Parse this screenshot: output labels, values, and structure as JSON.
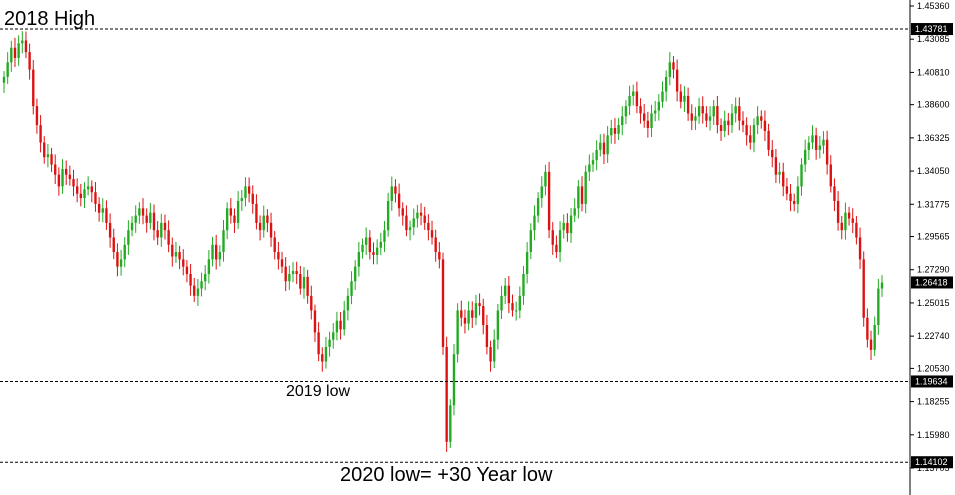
{
  "chart_data": {
    "type": "candlestick",
    "ylim": [
      1.13705,
      1.4536
    ],
    "y_ticks": [
      "1.45360",
      "1.43085",
      "1.40810",
      "1.38600",
      "1.36325",
      "1.34050",
      "1.31775",
      "1.29565",
      "1.27290",
      "1.25015",
      "1.22740",
      "1.20530",
      "1.18255",
      "1.15980",
      "1.13705"
    ],
    "price_markers": [
      {
        "label": "1.43781",
        "value": 1.43781,
        "style": "dashed"
      },
      {
        "label": "1.26418",
        "value": 1.26418,
        "style": "current"
      },
      {
        "label": "1.19634",
        "value": 1.19634,
        "style": "dashed"
      },
      {
        "label": "1.14102",
        "value": 1.14102,
        "style": "dashed"
      }
    ],
    "annotations": {
      "high_2018": "2018 High",
      "low_2019": "2019 low",
      "low_2020": "2020 low= +30 Year low"
    },
    "colors": {
      "up": "#22aa22",
      "down": "#dd1111",
      "background": "#ffffff",
      "axis_text": "#000000"
    },
    "series_close": [
      1.405,
      1.415,
      1.425,
      1.418,
      1.428,
      1.43,
      1.422,
      1.41,
      1.385,
      1.372,
      1.36,
      1.35,
      1.352,
      1.345,
      1.338,
      1.33,
      1.342,
      1.338,
      1.335,
      1.33,
      1.325,
      1.322,
      1.328,
      1.33,
      1.326,
      1.318,
      1.312,
      1.315,
      1.305,
      1.295,
      1.285,
      1.275,
      1.28,
      1.29,
      1.3,
      1.305,
      1.31,
      1.315,
      1.31,
      1.305,
      1.312,
      1.3,
      1.295,
      1.305,
      1.3,
      1.29,
      1.282,
      1.285,
      1.28,
      1.275,
      1.27,
      1.262,
      1.255,
      1.26,
      1.265,
      1.27,
      1.28,
      1.29,
      1.28,
      1.285,
      1.3,
      1.315,
      1.31,
      1.305,
      1.32,
      1.322,
      1.33,
      1.325,
      1.318,
      1.305,
      1.3,
      1.31,
      1.305,
      1.295,
      1.285,
      1.28,
      1.275,
      1.265,
      1.27,
      1.272,
      1.27,
      1.26,
      1.268,
      1.255,
      1.245,
      1.23,
      1.215,
      1.21,
      1.22,
      1.225,
      1.23,
      1.238,
      1.232,
      1.245,
      1.255,
      1.265,
      1.275,
      1.285,
      1.29,
      1.295,
      1.285,
      1.283,
      1.288,
      1.292,
      1.3,
      1.32,
      1.33,
      1.325,
      1.315,
      1.31,
      1.3,
      1.302,
      1.308,
      1.312,
      1.31,
      1.305,
      1.3,
      1.295,
      1.285,
      1.28,
      1.22,
      1.155,
      1.18,
      1.215,
      1.245,
      1.24,
      1.236,
      1.245,
      1.24,
      1.25,
      1.248,
      1.235,
      1.22,
      1.21,
      1.225,
      1.245,
      1.255,
      1.262,
      1.25,
      1.245,
      1.245,
      1.255,
      1.27,
      1.285,
      1.3,
      1.31,
      1.322,
      1.33,
      1.34,
      1.3,
      1.29,
      1.285,
      1.3,
      1.305,
      1.298,
      1.31,
      1.315,
      1.33,
      1.318,
      1.34,
      1.345,
      1.348,
      1.355,
      1.36,
      1.352,
      1.365,
      1.37,
      1.366,
      1.372,
      1.378,
      1.385,
      1.392,
      1.395,
      1.385,
      1.38,
      1.375,
      1.37,
      1.38,
      1.382,
      1.388,
      1.395,
      1.405,
      1.415,
      1.41,
      1.395,
      1.388,
      1.392,
      1.38,
      1.375,
      1.378,
      1.385,
      1.38,
      1.375,
      1.378,
      1.385,
      1.372,
      1.368,
      1.375,
      1.372,
      1.38,
      1.385,
      1.375,
      1.372,
      1.365,
      1.36,
      1.372,
      1.378,
      1.375,
      1.368,
      1.355,
      1.35,
      1.338,
      1.34,
      1.33,
      1.325,
      1.32,
      1.318,
      1.33,
      1.345,
      1.355,
      1.36,
      1.365,
      1.355,
      1.358,
      1.362,
      1.345,
      1.33,
      1.32,
      1.305,
      1.3,
      1.312,
      1.308,
      1.305,
      1.295,
      1.28,
      1.24,
      1.225,
      1.218,
      1.235,
      1.26,
      1.264
    ]
  }
}
